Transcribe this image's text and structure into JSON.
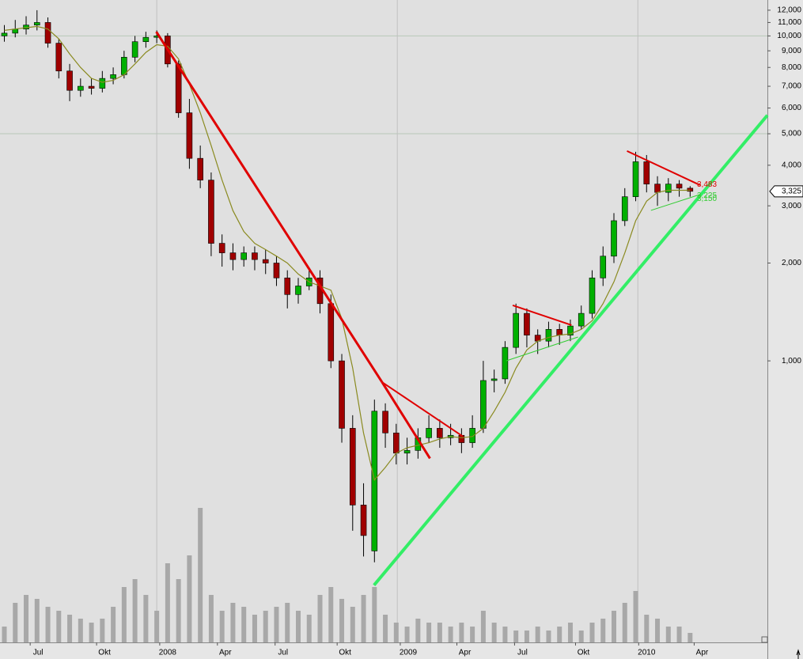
{
  "chart_data": {
    "type": "candlestick",
    "log_scale": true,
    "ylim": [
      136,
      12900
    ],
    "yticks": [
      {
        "value": 12000,
        "label": "12,000"
      },
      {
        "value": 11000,
        "label": "11,000"
      },
      {
        "value": 10000,
        "label": "10,000"
      },
      {
        "value": 9000,
        "label": "9,000"
      },
      {
        "value": 8000,
        "label": "8,000"
      },
      {
        "value": 7000,
        "label": "7,000"
      },
      {
        "value": 6000,
        "label": "6,000"
      },
      {
        "value": 5000,
        "label": "5,000"
      },
      {
        "value": 4000,
        "label": "4,000"
      },
      {
        "value": 3000,
        "label": "3,000"
      },
      {
        "value": 2000,
        "label": "2,000"
      },
      {
        "value": 1000,
        "label": "1,000"
      }
    ],
    "ygrid": [
      10000,
      5000
    ],
    "xlim": [
      -0.4,
      70.1
    ],
    "xticks": [
      {
        "value": 3.1,
        "label": "Jul"
      },
      {
        "value": 9.2,
        "label": "Okt"
      },
      {
        "value": 15,
        "label": "2008"
      },
      {
        "value": 20.3,
        "label": "Apr"
      },
      {
        "value": 25.6,
        "label": "Jul"
      },
      {
        "value": 31.3,
        "label": "Okt"
      },
      {
        "value": 37.1,
        "label": "2009"
      },
      {
        "value": 42.3,
        "label": "Apr"
      },
      {
        "value": 47.6,
        "label": "Jul"
      },
      {
        "value": 53.2,
        "label": "Okt"
      },
      {
        "value": 59,
        "label": "2010"
      },
      {
        "value": 64.1,
        "label": "Apr"
      }
    ],
    "xgrid": [
      14.0,
      36.1,
      58.2
    ],
    "up_color": "#00b000",
    "down_color": "#a00000",
    "open": [
      10000,
      10200,
      10500,
      10800,
      11000,
      9500,
      7800,
      6800,
      7000,
      6900,
      7400,
      7600,
      8600,
      9600,
      9900,
      10000,
      8200,
      5800,
      4200,
      3600,
      2300,
      2150,
      2050,
      2150,
      2050,
      2000,
      1800,
      1600,
      1700,
      1800,
      1500,
      1000,
      620,
      360,
      260,
      700,
      600,
      520,
      530,
      580,
      620,
      580,
      590,
      560,
      620,
      870,
      880,
      1100,
      1400,
      1200,
      1150,
      1250,
      1200,
      1280,
      1400,
      1800,
      2100,
      2700,
      3200,
      4100,
      3500,
      3300,
      3500,
      3400
    ],
    "high": [
      10800,
      11200,
      11500,
      12000,
      11400,
      9800,
      8200,
      7400,
      7400,
      7800,
      8000,
      9000,
      10000,
      10300,
      10400,
      10200,
      8400,
      6400,
      4600,
      3800,
      2450,
      2300,
      2250,
      2250,
      2200,
      2100,
      1900,
      1800,
      1900,
      1900,
      1600,
      1050,
      680,
      420,
      760,
      740,
      640,
      580,
      620,
      680,
      660,
      640,
      620,
      680,
      1000,
      940,
      1150,
      1500,
      1450,
      1250,
      1320,
      1300,
      1340,
      1480,
      1900,
      2250,
      2850,
      3400,
      4400,
      4300,
      3700,
      3650,
      3600,
      3450
    ],
    "low": [
      9600,
      9900,
      10100,
      10400,
      9200,
      7400,
      6300,
      6500,
      6600,
      6700,
      7100,
      7400,
      8300,
      9200,
      9500,
      8000,
      5600,
      3900,
      3400,
      2100,
      1950,
      1900,
      1950,
      1900,
      1850,
      1700,
      1450,
      1500,
      1650,
      1400,
      950,
      560,
      300,
      250,
      240,
      540,
      480,
      480,
      500,
      560,
      540,
      550,
      520,
      540,
      600,
      800,
      850,
      1050,
      1100,
      1050,
      1100,
      1120,
      1150,
      1250,
      1350,
      1700,
      2000,
      2600,
      3100,
      3300,
      3000,
      3100,
      3200,
      3200
    ],
    "close": [
      10200,
      10500,
      10800,
      11000,
      9500,
      7800,
      6800,
      7000,
      6900,
      7400,
      7600,
      8600,
      9600,
      9900,
      10000,
      8200,
      5800,
      4200,
      3600,
      2300,
      2150,
      2050,
      2150,
      2050,
      2000,
      1800,
      1600,
      1700,
      1800,
      1500,
      1000,
      620,
      360,
      290,
      700,
      600,
      520,
      530,
      580,
      620,
      580,
      590,
      560,
      620,
      870,
      880,
      1100,
      1400,
      1200,
      1150,
      1250,
      1200,
      1280,
      1400,
      1800,
      2100,
      2700,
      3200,
      4100,
      3500,
      3300,
      3500,
      3400,
      3325
    ],
    "ma_color": "#8a8a20",
    "ma": [
      10400,
      10500,
      10600,
      10700,
      10500,
      9800,
      8800,
      8000,
      7400,
      7200,
      7300,
      7600,
      8200,
      8900,
      9400,
      9300,
      8500,
      7100,
      5800,
      4600,
      3600,
      2900,
      2500,
      2300,
      2200,
      2100,
      2000,
      1850,
      1750,
      1700,
      1650,
      1350,
      950,
      600,
      430,
      470,
      520,
      540,
      550,
      560,
      575,
      585,
      580,
      585,
      620,
      700,
      800,
      950,
      1080,
      1150,
      1180,
      1200,
      1210,
      1250,
      1330,
      1500,
      1750,
      2150,
      2700,
      3100,
      3300,
      3350,
      3350,
      3350
    ],
    "volume_color": "#a8a8a8",
    "volume_lim": [
      0,
      200
    ],
    "volume": [
      20,
      50,
      60,
      55,
      45,
      40,
      35,
      30,
      25,
      30,
      45,
      70,
      80,
      60,
      40,
      100,
      80,
      110,
      170,
      60,
      40,
      50,
      45,
      35,
      40,
      45,
      50,
      40,
      35,
      60,
      70,
      55,
      45,
      60,
      70,
      35,
      25,
      20,
      30,
      25,
      25,
      20,
      25,
      20,
      40,
      25,
      20,
      15,
      15,
      20,
      15,
      20,
      25,
      15,
      25,
      30,
      40,
      50,
      65,
      35,
      30,
      20,
      20,
      12
    ],
    "trendlines": [
      {
        "color": "#e00000",
        "width": 3,
        "x": [
          13.96,
          34.7
        ],
        "y": [
          10300,
          860
        ]
      },
      {
        "color": "#e00000",
        "width": 2,
        "x": [
          34.7,
          42.1
        ],
        "y": [
          860,
          586
        ]
      },
      {
        "color": "#e00000",
        "width": 3,
        "x": [
          34.7,
          39.1
        ],
        "y": [
          860,
          501
        ]
      },
      {
        "color": "#e00000",
        "width": 2,
        "x": [
          46.7,
          52.1
        ],
        "y": [
          1482,
          1288
        ]
      },
      {
        "color": "#e00000",
        "width": 2,
        "x": [
          57.2,
          63.9
        ],
        "y": [
          4425,
          3475
        ]
      },
      {
        "color": "#33ee66",
        "width": 4,
        "x": [
          33.96,
          70.1
        ],
        "y": [
          204,
          5700
        ]
      },
      {
        "color": "#33cc33",
        "width": 1,
        "x": [
          46.1,
          52.7
        ],
        "y": [
          1000,
          1184
        ]
      },
      {
        "color": "#33cc33",
        "width": 1,
        "x": [
          59.4,
          63.9
        ],
        "y": [
          2905,
          3250
        ]
      }
    ],
    "annotations": [
      {
        "color": "#e00000",
        "value": 3483,
        "label": "3,483"
      },
      {
        "color": "#33cc33",
        "value": 3225,
        "label": "3,225"
      },
      {
        "color": "#33cc33",
        "value": 3150,
        "label": "3,150"
      }
    ],
    "price_label": {
      "value": 3325,
      "label": "3,325"
    }
  }
}
